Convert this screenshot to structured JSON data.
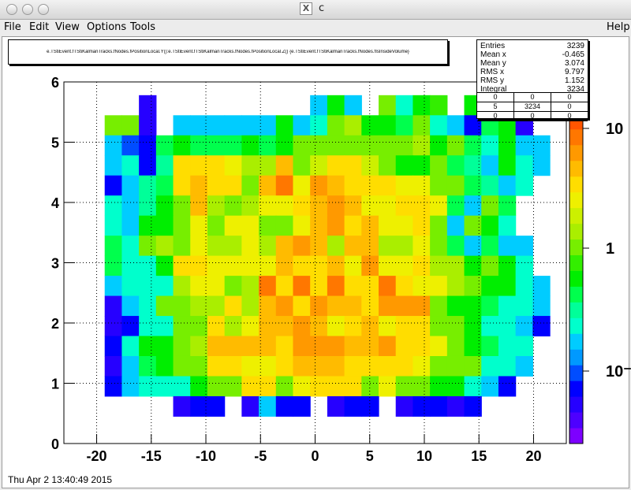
{
  "window": {
    "title": "c"
  },
  "menu": {
    "file": "File",
    "edit": "Edit",
    "view": "View",
    "options": "Options",
    "tools": "Tools",
    "help": "Help"
  },
  "plot_title": "e.TStiEvent.fTStiKalmanTracks.fNodes.fPositionLocal.Y():e.TStiEvent.fTStiKalmanTracks.fNodes.fPositionLocal.Z() {e.TStiEvent.fTStiKalmanTracks.fNodes.fIsInsideVolume}",
  "stats": {
    "rows": [
      {
        "key": "Entries",
        "value": "3239"
      },
      {
        "key": "Mean x",
        "value": "-0.465"
      },
      {
        "key": "Mean y",
        "value": "3.074"
      },
      {
        "key": "RMS x",
        "value": "9.797"
      },
      {
        "key": "RMS y",
        "value": "1.152"
      },
      {
        "key": "Integral",
        "value": "3234"
      }
    ],
    "table": [
      [
        "0",
        "0",
        "0"
      ],
      [
        "5",
        "3234",
        "0"
      ],
      [
        "0",
        "0",
        "0"
      ]
    ]
  },
  "date": "Thu Apr  2 13:40:49 2015",
  "palette_labels": [
    "10",
    "1",
    "10⁻¹"
  ],
  "chart_data": {
    "type": "heatmap",
    "x_ticks": [
      "-20",
      "-15",
      "-10",
      "-5",
      "0",
      "5",
      "10",
      "15",
      "20"
    ],
    "y_ticks": [
      "0",
      "1",
      "2",
      "3",
      "4",
      "5",
      "6"
    ],
    "xlim": [
      -23,
      23
    ],
    "ylim": [
      0,
      6
    ],
    "grid": true,
    "colorbar": "right, log scale",
    "palette": [
      "#7d00ff",
      "#4d00ff",
      "#2600ff",
      "#0000ff",
      "#004dff",
      "#0099ff",
      "#00ccff",
      "#00ffcc",
      "#00ff99",
      "#00ff4d",
      "#00ee00",
      "#33ee00",
      "#77ee00",
      "#aaee00",
      "#ccf000",
      "#eef000",
      "#ffdd00",
      "#ffbb00",
      "#ff9900",
      "#ff7700",
      "#ff5500",
      "#ff3300",
      "#ee0000"
    ],
    "bin_cols": 25,
    "bin_rows": 18,
    "y_min_bin": 0.777,
    "y_bin_height": 0.333,
    "cell_rows": [
      "..........................",
      "...................",
      "....",
      "......aaa...cc...c..........................",
      "............dddfghffgjfhggbbbd.......",
      ".kihhhhhhhhhhhhhhhhhhhdhhg..",
      ".hjjjjjjjjlljiijjjjjjjjlhe.",
      ".",
      ".",
      ".",
      ".",
      ".",
      ".",
      ".",
      ".",
      ".",
      ".",
      "."
    ],
    "note_rows_top": "cell_rows index 0 = top row y~5.44-5.78"
  }
}
